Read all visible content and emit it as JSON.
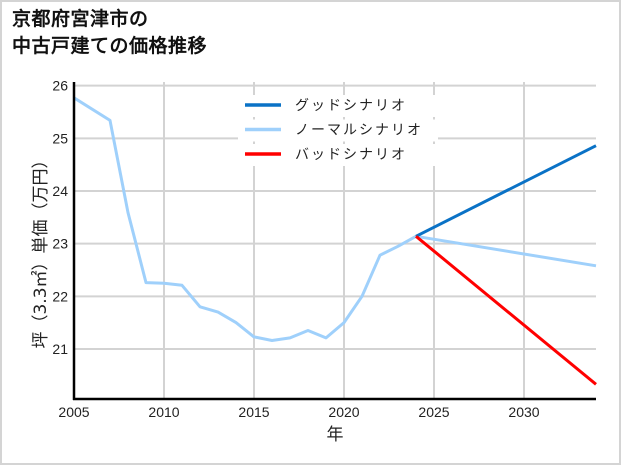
{
  "title": {
    "line1": "京都府宮津市の",
    "line2": "中古戸建ての価格推移"
  },
  "chart_data": {
    "type": "line",
    "title": "京都府宮津市の中古戸建ての価格推移",
    "xlabel": "年",
    "ylabel": "坪（3.3㎡）単価（万円）",
    "xlim": [
      2005,
      2034
    ],
    "ylim": [
      20.05,
      26.07
    ],
    "xticks": [
      2005,
      2010,
      2015,
      2020,
      2025,
      2030
    ],
    "yticks": [
      21,
      22,
      23,
      24,
      25,
      26
    ],
    "grid": true,
    "legend_position": "upper center",
    "series": [
      {
        "name": "ノーマルシナリオ",
        "color": "#9fd0fb",
        "x": [
          2005,
          2007,
          2008,
          2009,
          2010,
          2011,
          2012,
          2013,
          2014,
          2015,
          2016,
          2017,
          2018,
          2019,
          2020,
          2021,
          2022,
          2023,
          2024,
          2034
        ],
        "values": [
          25.77,
          25.34,
          23.59,
          22.26,
          22.25,
          22.21,
          21.8,
          21.7,
          21.5,
          21.23,
          21.16,
          21.21,
          21.35,
          21.21,
          21.5,
          22.0,
          22.78,
          22.95,
          23.14,
          22.58
        ]
      },
      {
        "name": "グッドシナリオ",
        "color": "#0a72c6",
        "x": [
          2024,
          2034
        ],
        "values": [
          23.14,
          24.86
        ]
      },
      {
        "name": "バッドシナリオ",
        "color": "#ff0000",
        "x": [
          2024,
          2034
        ],
        "values": [
          23.14,
          20.33
        ]
      }
    ],
    "legend": [
      {
        "label": "グッドシナリオ",
        "color": "#0a72c6"
      },
      {
        "label": "ノーマルシナリオ",
        "color": "#9fd0fb"
      },
      {
        "label": "バッドシナリオ",
        "color": "#ff0000"
      }
    ]
  },
  "colors": {
    "grid": "#d3d3d3",
    "axis": "#000000",
    "frame": "#d4d4d4"
  }
}
